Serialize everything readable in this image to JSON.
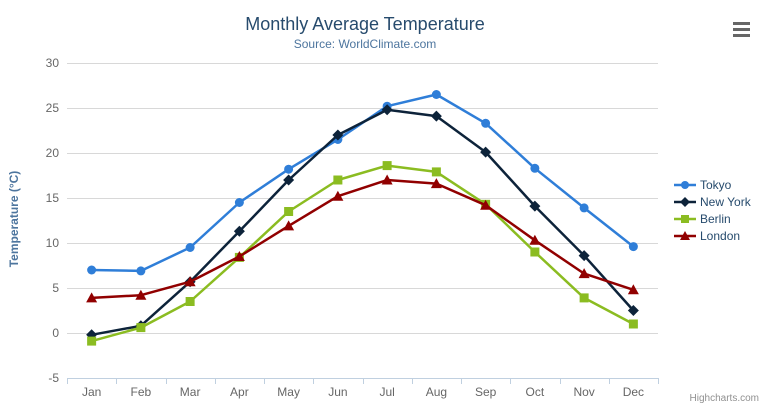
{
  "chart_data": {
    "type": "line",
    "title": "Monthly Average Temperature",
    "subtitle": "Source: WorldClimate.com",
    "ylabel": "Temperature (°C)",
    "xlabel": "",
    "credits": "Highcharts.com",
    "categories": [
      "Jan",
      "Feb",
      "Mar",
      "Apr",
      "May",
      "Jun",
      "Jul",
      "Aug",
      "Sep",
      "Oct",
      "Nov",
      "Dec"
    ],
    "ylim": [
      -5,
      30
    ],
    "yticks": [
      -5,
      0,
      5,
      10,
      15,
      20,
      25,
      30
    ],
    "grid": true,
    "legend_position": "right",
    "series": [
      {
        "name": "Tokyo",
        "color": "#2f7ed8",
        "marker": "circle",
        "values": [
          7.0,
          6.9,
          9.5,
          14.5,
          18.2,
          21.5,
          25.2,
          26.5,
          23.3,
          18.3,
          13.9,
          9.6
        ]
      },
      {
        "name": "New York",
        "color": "#0d233a",
        "marker": "diamond",
        "values": [
          -0.2,
          0.8,
          5.7,
          11.3,
          17.0,
          22.0,
          24.8,
          24.1,
          20.1,
          14.1,
          8.6,
          2.5
        ]
      },
      {
        "name": "Berlin",
        "color": "#8bbc21",
        "marker": "square",
        "values": [
          -0.9,
          0.6,
          3.5,
          8.4,
          13.5,
          17.0,
          18.6,
          17.9,
          14.3,
          9.0,
          3.9,
          1.0
        ]
      },
      {
        "name": "London",
        "color": "#910000",
        "marker": "triangle",
        "values": [
          3.9,
          4.2,
          5.7,
          8.5,
          11.9,
          15.2,
          17.0,
          16.6,
          14.2,
          10.3,
          6.6,
          4.8
        ]
      }
    ],
    "colors": {
      "grid_line": "#d8d8d8",
      "axis_line": "#c0d0e0",
      "tick_mark": "#c0d0e0",
      "axis_label": "#666666",
      "title_text": "#274b6d",
      "subtitle_text": "#4d759e",
      "y_axis_title_text": "#4d759e",
      "legend_text": "#274b6d",
      "credits_text": "#909090",
      "export_icon": "#666666",
      "background": "#ffffff"
    }
  }
}
